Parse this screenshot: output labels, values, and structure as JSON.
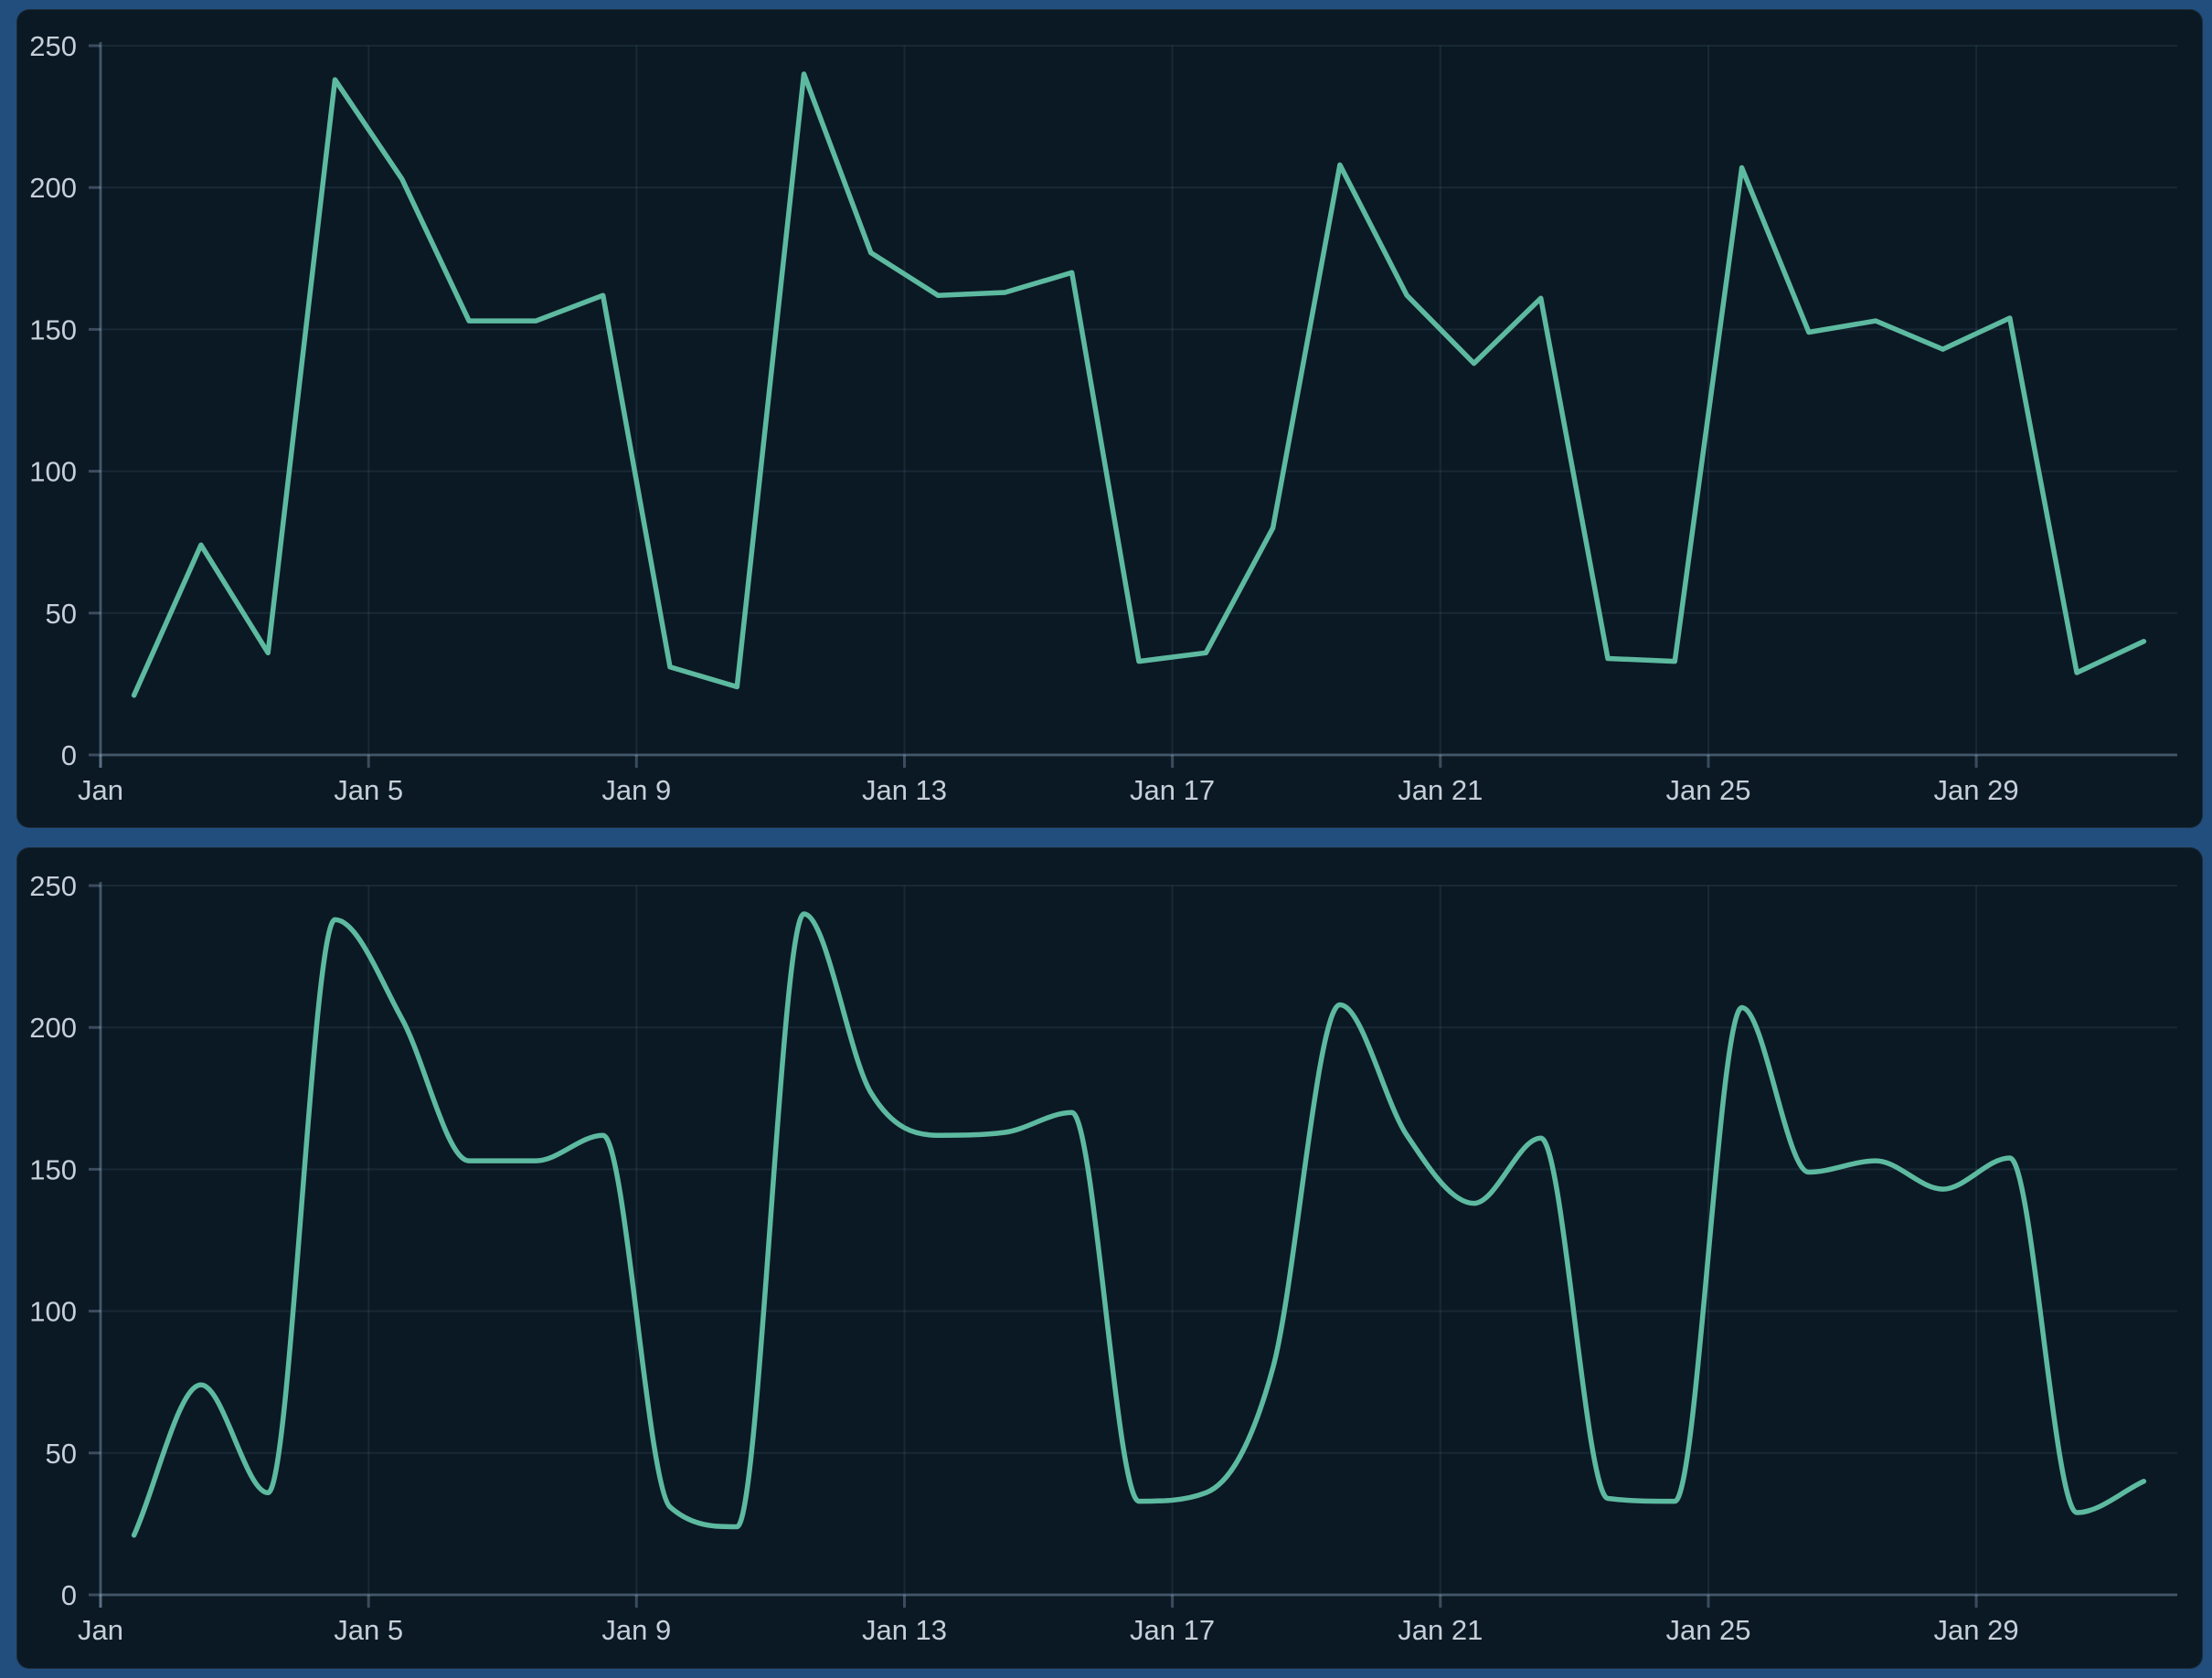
{
  "theme": {
    "border_color": "#214e7d",
    "panel_color": "#0b1924",
    "grid_color": "rgba(148,178,205,0.10)",
    "axis_color": "rgba(158,188,214,0.32)",
    "tick_text_color": "#c6cfd8",
    "line_color": "#5dbaa0"
  },
  "chart_data": [
    {
      "id": "top-line-chart",
      "type": "line",
      "interpolation": "linear",
      "title": "",
      "xlabel": "",
      "ylabel": "",
      "ylim": [
        0,
        250
      ],
      "y_ticks": [
        0,
        50,
        100,
        150,
        200,
        250
      ],
      "x_tick_labels": [
        "Jan",
        "Jan 5",
        "Jan 9",
        "Jan 13",
        "Jan 17",
        "Jan 21",
        "Jan 25",
        "Jan 29"
      ],
      "x_tick_indices": [
        0,
        4,
        8,
        12,
        16,
        20,
        24,
        28
      ],
      "grid": true,
      "legend": false,
      "line_color": "#5dbaa0",
      "categories": [
        "Jan 1",
        "Jan 2",
        "Jan 3",
        "Jan 4",
        "Jan 5",
        "Jan 6",
        "Jan 7",
        "Jan 8",
        "Jan 9",
        "Jan 10",
        "Jan 11",
        "Jan 12",
        "Jan 13",
        "Jan 14",
        "Jan 15",
        "Jan 16",
        "Jan 17",
        "Jan 18",
        "Jan 19",
        "Jan 20",
        "Jan 21",
        "Jan 22",
        "Jan 23",
        "Jan 24",
        "Jan 25",
        "Jan 26",
        "Jan 27",
        "Jan 28",
        "Jan 29",
        "Jan 30",
        "Jan 31"
      ],
      "values": [
        21,
        74,
        36,
        238,
        203,
        153,
        153,
        162,
        31,
        24,
        240,
        177,
        162,
        163,
        170,
        33,
        36,
        80,
        208,
        162,
        138,
        161,
        34,
        33,
        207,
        149,
        153,
        143,
        154,
        29,
        40
      ]
    },
    {
      "id": "bottom-line-chart",
      "type": "line",
      "interpolation": "monotone",
      "title": "",
      "xlabel": "",
      "ylabel": "",
      "ylim": [
        0,
        250
      ],
      "y_ticks": [
        0,
        50,
        100,
        150,
        200,
        250
      ],
      "x_tick_labels": [
        "Jan",
        "Jan 5",
        "Jan 9",
        "Jan 13",
        "Jan 17",
        "Jan 21",
        "Jan 25",
        "Jan 29"
      ],
      "x_tick_indices": [
        0,
        4,
        8,
        12,
        16,
        20,
        24,
        28
      ],
      "grid": true,
      "legend": false,
      "line_color": "#5dbaa0",
      "categories": [
        "Jan 1",
        "Jan 2",
        "Jan 3",
        "Jan 4",
        "Jan 5",
        "Jan 6",
        "Jan 7",
        "Jan 8",
        "Jan 9",
        "Jan 10",
        "Jan 11",
        "Jan 12",
        "Jan 13",
        "Jan 14",
        "Jan 15",
        "Jan 16",
        "Jan 17",
        "Jan 18",
        "Jan 19",
        "Jan 20",
        "Jan 21",
        "Jan 22",
        "Jan 23",
        "Jan 24",
        "Jan 25",
        "Jan 26",
        "Jan 27",
        "Jan 28",
        "Jan 29",
        "Jan 30",
        "Jan 31"
      ],
      "values": [
        21,
        74,
        36,
        238,
        203,
        153,
        153,
        162,
        31,
        24,
        240,
        177,
        162,
        163,
        170,
        33,
        36,
        80,
        208,
        162,
        138,
        161,
        34,
        33,
        207,
        149,
        153,
        143,
        154,
        29,
        40
      ]
    }
  ]
}
